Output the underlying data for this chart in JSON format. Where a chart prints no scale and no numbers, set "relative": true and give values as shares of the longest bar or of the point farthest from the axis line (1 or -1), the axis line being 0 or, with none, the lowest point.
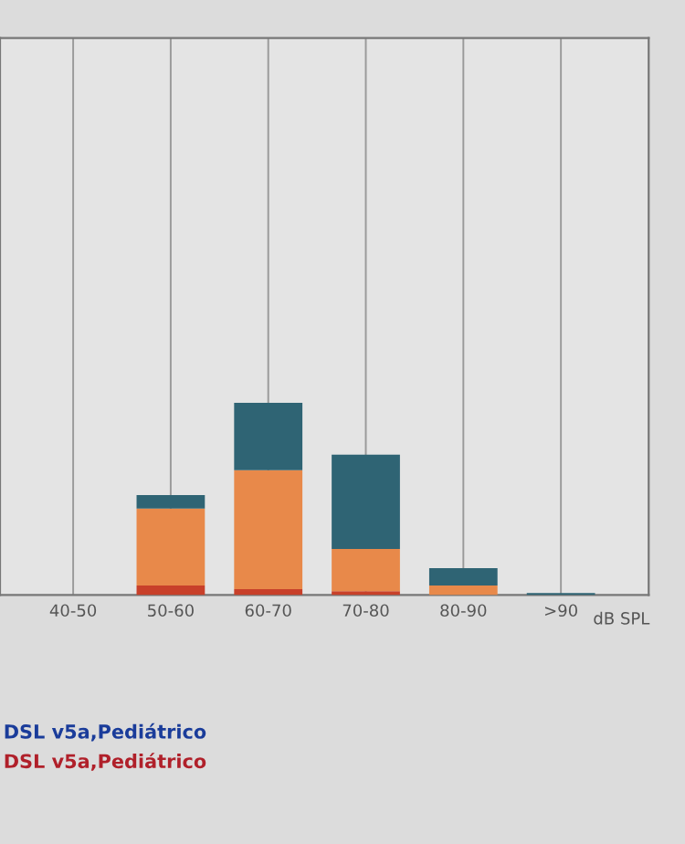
{
  "chart_data": {
    "type": "bar",
    "stacked": true,
    "relative": true,
    "grid": "x",
    "xlabel": "dB SPL",
    "categories": [
      "40-50",
      "50-60",
      "60-70",
      "70-80",
      "80-90",
      ">90"
    ],
    "series": [
      {
        "color": "#c8402a",
        "values": [
          0,
          0.05,
          0.03,
          0.02,
          0,
          0
        ]
      },
      {
        "color": "#e8894a",
        "values": [
          0,
          0.4,
          0.62,
          0.22,
          0.05,
          0
        ]
      },
      {
        "color": "#2f6474",
        "values": [
          0,
          0.07,
          0.35,
          0.49,
          0.09,
          0.01
        ]
      }
    ],
    "annotations": [
      "DSL v5a,Pediátrico",
      "DSL v5a,Pediátrico"
    ]
  }
}
